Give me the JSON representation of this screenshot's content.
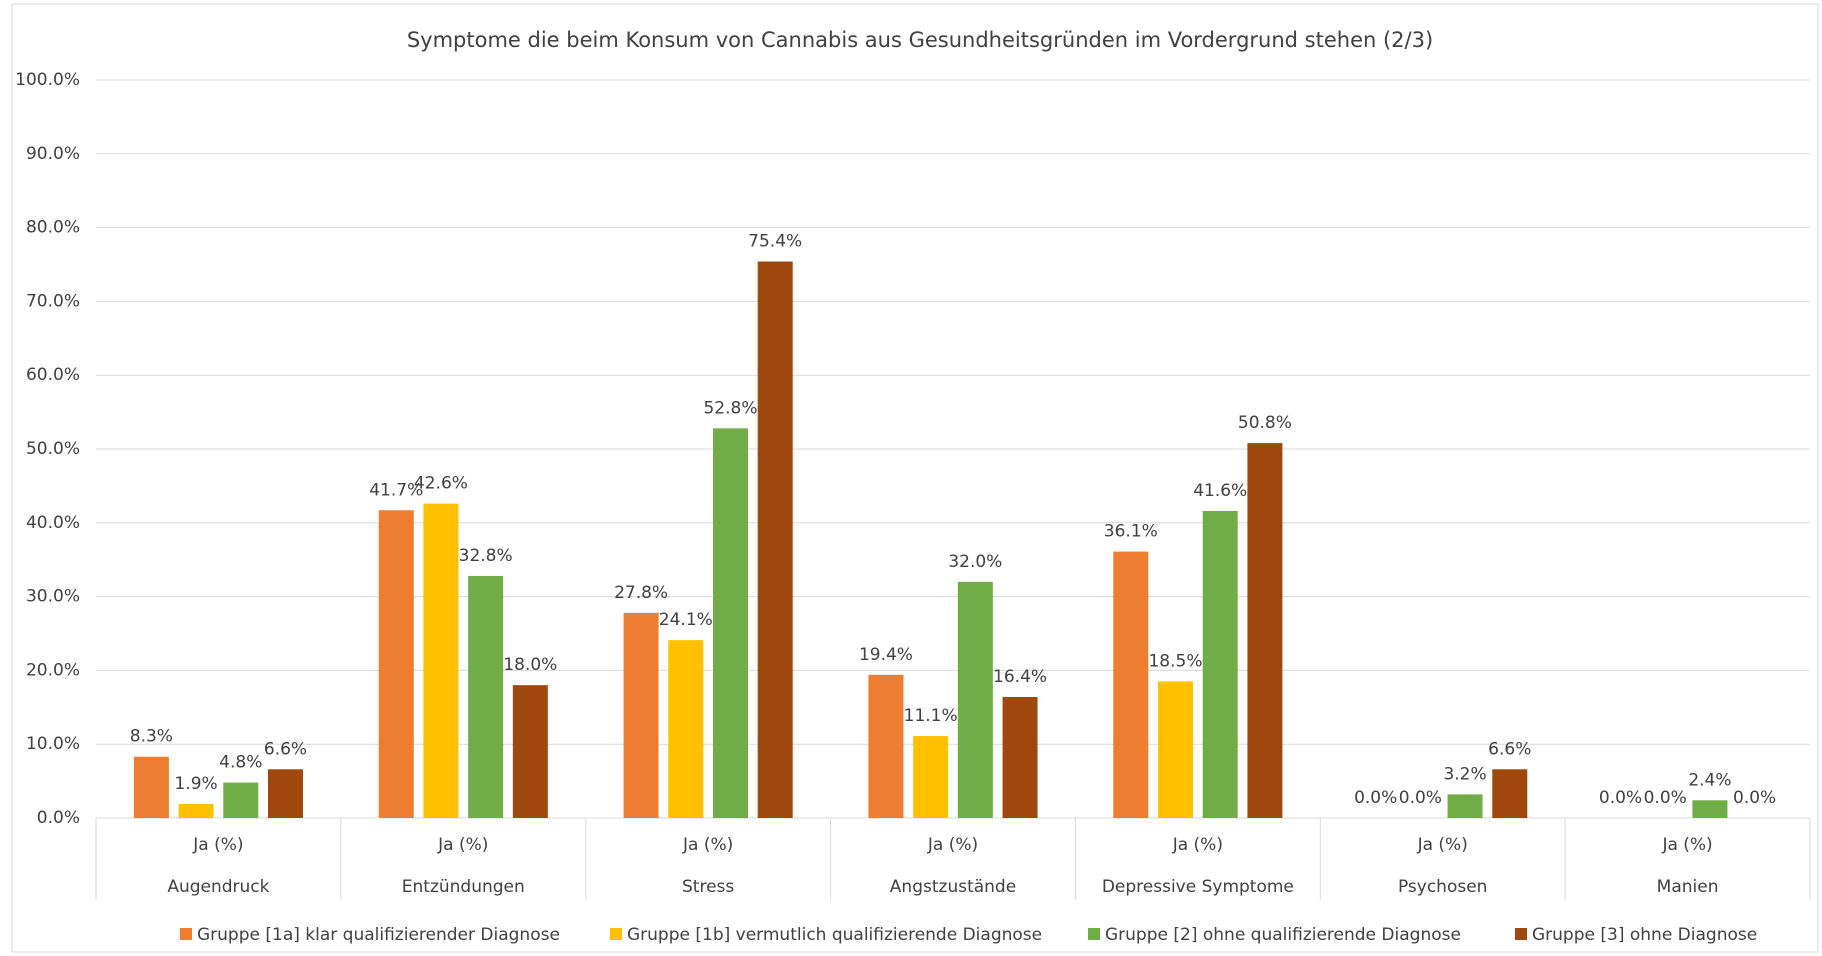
{
  "chart_data": {
    "type": "bar",
    "title": "Symptome die beim Konsum von Cannabis aus Gesundheitsgründen im Vordergrund stehen (2/3)",
    "categories": [
      "Augendruck",
      "Entzündungen",
      "Stress",
      "Angstzustände",
      "Depressive Symptome",
      "Psychosen",
      "Manien"
    ],
    "subcategories": [
      "Ja (%)",
      "Ja (%)",
      "Ja (%)",
      "Ja (%)",
      "Ja (%)",
      "Ja (%)",
      "Ja (%)"
    ],
    "series": [
      {
        "name": "Gruppe [1a] klar qualifizierender Diagnose",
        "color": "#ed7d31",
        "values": [
          8.3,
          41.7,
          27.8,
          19.4,
          36.1,
          0.0,
          0.0
        ],
        "value_labels": [
          "8.3%",
          "41.7%",
          "27.8%",
          "19.4%",
          "36.1%",
          "0.0%",
          "0.0%"
        ]
      },
      {
        "name": "Gruppe [1b] vermutlich qualifizierende Diagnose",
        "color": "#ffc000",
        "values": [
          1.9,
          42.6,
          24.1,
          11.1,
          18.5,
          0.0,
          0.0
        ],
        "value_labels": [
          "1.9%",
          "42.6%",
          "24.1%",
          "11.1%",
          "18.5%",
          "0.0%",
          "0.0%"
        ]
      },
      {
        "name": "Gruppe [2] ohne qualifizierende Diagnose",
        "color": "#70ad47",
        "values": [
          4.8,
          32.8,
          52.8,
          32.0,
          41.6,
          3.2,
          2.4
        ],
        "value_labels": [
          "4.8%",
          "32.8%",
          "52.8%",
          "32.0%",
          "41.6%",
          "3.2%",
          "2.4%"
        ]
      },
      {
        "name": "Gruppe [3] ohne Diagnose",
        "color": "#9e480e",
        "values": [
          6.6,
          18.0,
          75.4,
          16.4,
          50.8,
          6.6,
          0.0
        ],
        "value_labels": [
          "6.6%",
          "18.0%",
          "75.4%",
          "16.4%",
          "50.8%",
          "6.6%",
          "0.0%"
        ]
      }
    ],
    "ylim": [
      0,
      100
    ],
    "yticks": [
      {
        "value": 0,
        "label": "0.0%"
      },
      {
        "value": 10,
        "label": "10.0%"
      },
      {
        "value": 20,
        "label": "20.0%"
      },
      {
        "value": 30,
        "label": "30.0%"
      },
      {
        "value": 40,
        "label": "40.0%"
      },
      {
        "value": 50,
        "label": "50.0%"
      },
      {
        "value": 60,
        "label": "60.0%"
      },
      {
        "value": 70,
        "label": "70.0%"
      },
      {
        "value": 80,
        "label": "80.0%"
      },
      {
        "value": 90,
        "label": "90.0%"
      },
      {
        "value": 100,
        "label": "100.0%"
      }
    ],
    "grid": true,
    "legend": "bottom"
  }
}
